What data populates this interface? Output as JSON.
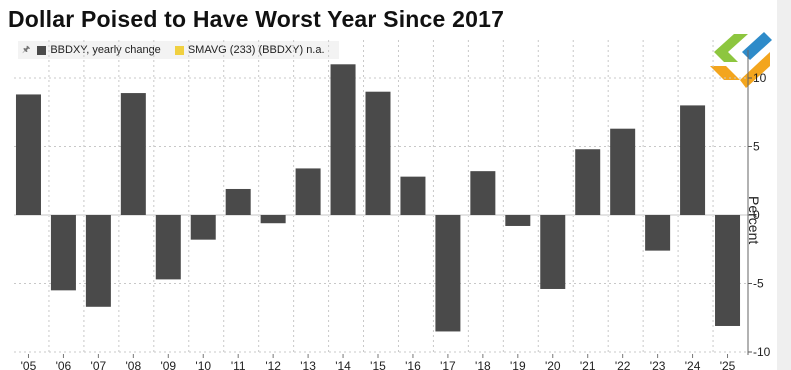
{
  "title": "Dollar Poised to Have Worst Year Since 2017",
  "legend": [
    {
      "label": "BBDXY, yearly change",
      "color": "#4a4a4a"
    },
    {
      "label": "SMAVG (233) (BBDXY) n.a.",
      "color": "#f0d040"
    }
  ],
  "logo": {
    "name": "brand-logo",
    "colors": [
      "#8dc63f",
      "#f3a51d",
      "#2e8bc9"
    ]
  },
  "colors": {
    "bar": "#4a4a4a",
    "grid": "#c8c8c8",
    "zero": "#e3e3e3"
  },
  "chart_data": {
    "type": "bar",
    "categories": [
      "'05",
      "'06",
      "'07",
      "'08",
      "'09",
      "'10",
      "'11",
      "'12",
      "'13",
      "'14",
      "'15",
      "'16",
      "'17",
      "'18",
      "'19",
      "'20",
      "'21",
      "'22",
      "'23",
      "'24",
      "'25"
    ],
    "series": [
      {
        "name": "BBDXY, yearly change",
        "values": [
          8.8,
          -5.5,
          -6.7,
          8.9,
          -4.7,
          -1.8,
          1.9,
          -0.6,
          3.4,
          11.0,
          9.0,
          2.8,
          -8.5,
          3.2,
          -0.8,
          -5.4,
          4.8,
          6.3,
          -2.6,
          8.0,
          -8.1
        ]
      }
    ],
    "ylabel": "Percent",
    "yticks": [
      10,
      5,
      0,
      -5,
      -10
    ],
    "ytick_labels": [
      "10",
      "5",
      "0",
      "-5",
      "-10"
    ],
    "ylim": [
      -10,
      10
    ],
    "grid": true,
    "legend_position": "top-left",
    "axis_side": "right"
  }
}
